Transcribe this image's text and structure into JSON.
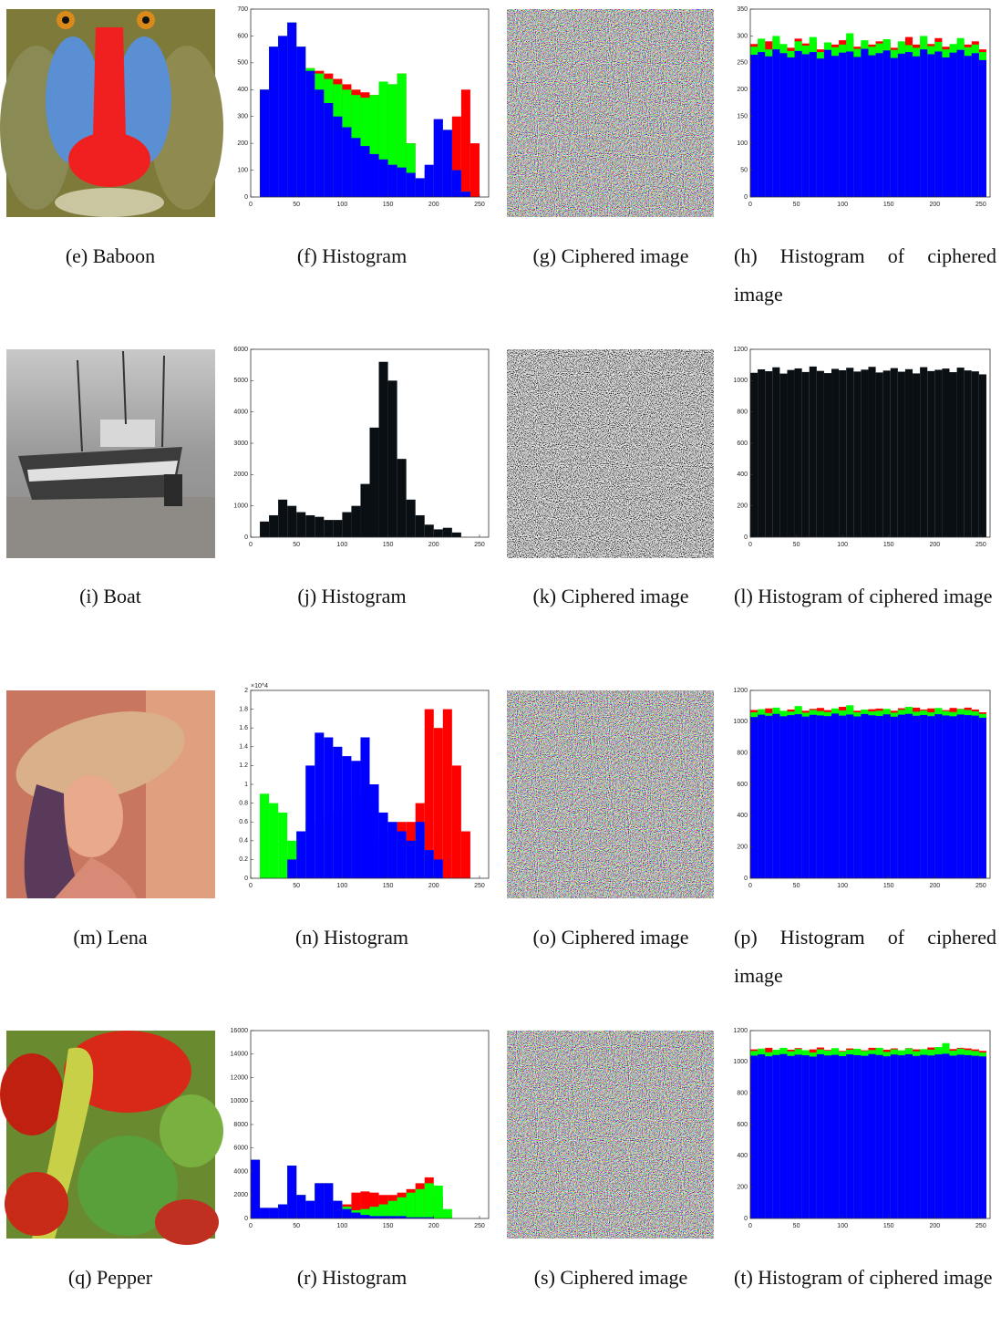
{
  "captions": [
    "(e) Baboon",
    "(f) Histogram",
    "(g) Ciphered image",
    "(h) Histogram of ciphered image",
    "(i) Boat",
    "(j) Histogram",
    "(k) Ciphered image",
    "(l) Histogram of ciphered image",
    "(m) Lena",
    "(n) Histogram",
    "(o) Ciphered image",
    "(p) Histogram of ciphered image",
    "(q) Pepper",
    "(r) Histogram",
    "(s) Ciphered image",
    "(t) Histogram of ciphered image"
  ],
  "chart_data": [
    {
      "type": "histogram",
      "xlim": [
        0,
        260
      ],
      "xticks": [
        0,
        50,
        100,
        150,
        200,
        250
      ],
      "ylim": [
        0,
        700
      ],
      "yticks": [
        0,
        100,
        200,
        300,
        400,
        500,
        600,
        700
      ],
      "bins": [
        0,
        10,
        20,
        30,
        40,
        50,
        60,
        70,
        80,
        90,
        100,
        110,
        120,
        130,
        140,
        150,
        160,
        170,
        180,
        190,
        200,
        210,
        220,
        230,
        240,
        250
      ],
      "series": [
        {
          "color": "#ff0000",
          "values": [
            0,
            400,
            560,
            600,
            650,
            560,
            480,
            470,
            460,
            440,
            420,
            400,
            390,
            380,
            420,
            420,
            460,
            200,
            60,
            100,
            290,
            250,
            300,
            400,
            200
          ]
        },
        {
          "color": "#00ff00",
          "values": [
            0,
            400,
            560,
            600,
            650,
            560,
            480,
            460,
            440,
            420,
            400,
            380,
            370,
            380,
            430,
            420,
            460,
            200,
            60,
            100,
            280,
            250,
            100,
            20,
            0
          ]
        },
        {
          "color": "#0000ff",
          "values": [
            0,
            400,
            560,
            600,
            650,
            560,
            470,
            400,
            350,
            300,
            260,
            220,
            190,
            160,
            140,
            120,
            110,
            90,
            70,
            120,
            290,
            250,
            100,
            20,
            0
          ]
        }
      ]
    },
    {
      "type": "histogram",
      "xlim": [
        0,
        260
      ],
      "xticks": [
        0,
        50,
        100,
        150,
        200,
        250
      ],
      "ylim": [
        0,
        350
      ],
      "yticks": [
        0,
        50,
        100,
        150,
        200,
        250,
        300,
        350
      ],
      "bins": [
        0,
        8,
        16,
        24,
        32,
        40,
        48,
        56,
        64,
        72,
        80,
        88,
        96,
        104,
        112,
        120,
        128,
        136,
        144,
        152,
        160,
        168,
        176,
        184,
        192,
        200,
        208,
        216,
        224,
        232,
        240,
        248,
        256
      ],
      "series": [
        {
          "color": "#ff0000",
          "values": [
            285,
            288,
            290,
            292,
            280,
            278,
            295,
            286,
            290,
            275,
            282,
            284,
            292,
            296,
            280,
            288,
            284,
            290,
            290,
            278,
            286,
            298,
            284,
            292,
            285,
            296,
            280,
            282,
            288,
            284,
            290,
            275
          ]
        },
        {
          "color": "#00ff00",
          "values": [
            280,
            295,
            275,
            300,
            285,
            272,
            290,
            282,
            298,
            270,
            288,
            279,
            284,
            305,
            276,
            292,
            280,
            286,
            294,
            274,
            290,
            283,
            278,
            300,
            281,
            289,
            275,
            285,
            296,
            279,
            284,
            270
          ]
        },
        {
          "color": "#0000ff",
          "values": [
            265,
            270,
            262,
            275,
            268,
            260,
            272,
            266,
            270,
            258,
            274,
            263,
            269,
            271,
            261,
            276,
            264,
            268,
            273,
            259,
            267,
            270,
            262,
            275,
            266,
            271,
            260,
            269,
            274,
            263,
            268,
            255
          ]
        }
      ]
    },
    {
      "type": "histogram",
      "xlim": [
        0,
        260
      ],
      "xticks": [
        0,
        50,
        100,
        150,
        200,
        250
      ],
      "ylim": [
        0,
        6000
      ],
      "yticks": [
        0,
        1000,
        2000,
        3000,
        4000,
        5000,
        6000
      ],
      "bins": [
        0,
        10,
        20,
        30,
        40,
        50,
        60,
        70,
        80,
        90,
        100,
        110,
        120,
        130,
        140,
        150,
        160,
        170,
        180,
        190,
        200,
        210,
        220,
        230,
        240,
        250
      ],
      "series": [
        {
          "color": "#0a0f14",
          "values": [
            0,
            500,
            700,
            1200,
            1000,
            800,
            700,
            650,
            550,
            550,
            800,
            1000,
            1700,
            3500,
            5600,
            5000,
            2500,
            1200,
            700,
            400,
            250,
            300,
            150,
            0,
            0
          ]
        }
      ]
    },
    {
      "type": "histogram",
      "xlim": [
        0,
        260
      ],
      "xticks": [
        0,
        50,
        100,
        150,
        200,
        250
      ],
      "ylim": [
        0,
        1200
      ],
      "yticks": [
        0,
        200,
        400,
        600,
        800,
        1000,
        1200
      ],
      "bins": [
        0,
        8,
        16,
        24,
        32,
        40,
        48,
        56,
        64,
        72,
        80,
        88,
        96,
        104,
        112,
        120,
        128,
        136,
        144,
        152,
        160,
        168,
        176,
        184,
        192,
        200,
        208,
        216,
        224,
        232,
        240,
        248,
        256
      ],
      "series": [
        {
          "color": "#0a0f14",
          "values": [
            1050,
            1072,
            1060,
            1085,
            1045,
            1068,
            1078,
            1055,
            1090,
            1062,
            1048,
            1075,
            1066,
            1082,
            1058,
            1070,
            1088,
            1052,
            1064,
            1080,
            1057,
            1073,
            1046,
            1086,
            1061,
            1069,
            1077,
            1054,
            1083,
            1065,
            1059,
            1040
          ]
        }
      ]
    },
    {
      "type": "histogram",
      "xlim": [
        0,
        260
      ],
      "xticks": [
        0,
        50,
        100,
        150,
        200,
        250
      ],
      "ylim": [
        0,
        2
      ],
      "yticks": [
        0,
        0.2,
        0.4,
        0.6,
        0.8,
        1,
        1.2,
        1.4,
        1.6,
        1.8,
        2
      ],
      "y_multiplier": "×10^4",
      "bins": [
        0,
        10,
        20,
        30,
        40,
        50,
        60,
        70,
        80,
        90,
        100,
        110,
        120,
        130,
        140,
        150,
        160,
        170,
        180,
        190,
        200,
        210,
        220,
        230,
        240,
        250
      ],
      "series": [
        {
          "color": "#ff0000",
          "values": [
            0,
            0,
            0,
            0,
            0,
            0,
            0,
            0,
            0,
            0,
            0,
            0,
            0,
            0,
            0.4,
            0.5,
            0.6,
            0.6,
            0.8,
            1.8,
            1.6,
            1.8,
            1.2,
            0.5,
            0
          ]
        },
        {
          "color": "#00ff00",
          "values": [
            0,
            0.9,
            0.8,
            0.7,
            0.4,
            0.5,
            0.6,
            0.6,
            0.7,
            0.7,
            0.8,
            0.9,
            1,
            0.8,
            0.4,
            0.5,
            0.4,
            0.3,
            0.5,
            0.3,
            0.1,
            0,
            0,
            0,
            0
          ]
        },
        {
          "color": "#0000ff",
          "values": [
            0,
            0,
            0,
            0,
            0.2,
            0.5,
            1.2,
            1.55,
            1.5,
            1.4,
            1.3,
            1.25,
            1.5,
            1,
            0.7,
            0.6,
            0.5,
            0.4,
            0.6,
            0.3,
            0.2,
            0,
            0,
            0,
            0
          ]
        }
      ]
    },
    {
      "type": "histogram",
      "xlim": [
        0,
        260
      ],
      "xticks": [
        0,
        50,
        100,
        150,
        200,
        250
      ],
      "ylim": [
        0,
        1200
      ],
      "yticks": [
        0,
        200,
        400,
        600,
        800,
        1000,
        1200
      ],
      "bins": [
        0,
        8,
        16,
        24,
        32,
        40,
        48,
        56,
        64,
        72,
        80,
        88,
        96,
        104,
        112,
        120,
        128,
        136,
        144,
        152,
        160,
        168,
        176,
        184,
        192,
        200,
        208,
        216,
        224,
        232,
        240,
        248,
        256
      ],
      "series": [
        {
          "color": "#ff0000",
          "values": [
            1075,
            1070,
            1085,
            1080,
            1060,
            1078,
            1090,
            1070,
            1082,
            1088,
            1074,
            1080,
            1095,
            1085,
            1070,
            1076,
            1080,
            1084,
            1078,
            1070,
            1086,
            1080,
            1090,
            1078,
            1085,
            1080,
            1074,
            1088,
            1082,
            1090,
            1078,
            1060
          ]
        },
        {
          "color": "#00ff00",
          "values": [
            1060,
            1080,
            1055,
            1090,
            1070,
            1065,
            1100,
            1058,
            1075,
            1068,
            1062,
            1085,
            1072,
            1105,
            1060,
            1078,
            1066,
            1070,
            1082,
            1058,
            1076,
            1095,
            1064,
            1072,
            1060,
            1088,
            1068,
            1062,
            1080,
            1075,
            1066,
            1050
          ]
        },
        {
          "color": "#0000ff",
          "values": [
            1030,
            1045,
            1038,
            1050,
            1035,
            1042,
            1048,
            1033,
            1044,
            1040,
            1036,
            1052,
            1039,
            1046,
            1034,
            1049,
            1041,
            1037,
            1047,
            1032,
            1045,
            1050,
            1038,
            1043,
            1036,
            1048,
            1040,
            1035,
            1046,
            1042,
            1039,
            1025
          ]
        }
      ]
    },
    {
      "type": "histogram",
      "xlim": [
        0,
        260
      ],
      "xticks": [
        0,
        50,
        100,
        150,
        200,
        250
      ],
      "ylim": [
        0,
        16000
      ],
      "yticks": [
        0,
        2000,
        4000,
        6000,
        8000,
        10000,
        12000,
        14000,
        16000
      ],
      "bins": [
        0,
        10,
        20,
        30,
        40,
        50,
        60,
        70,
        80,
        90,
        100,
        110,
        120,
        130,
        140,
        150,
        160,
        170,
        180,
        190,
        200,
        210,
        220,
        230,
        240,
        250
      ],
      "series": [
        {
          "color": "#ff0000",
          "values": [
            5000,
            900,
            900,
            1200,
            4500,
            2000,
            1500,
            3000,
            3000,
            1500,
            1200,
            2200,
            2300,
            2200,
            2000,
            2000,
            2200,
            2500,
            3000,
            3500,
            1800,
            300,
            0,
            0,
            0
          ]
        },
        {
          "color": "#00ff00",
          "values": [
            5000,
            900,
            900,
            1200,
            4500,
            2000,
            1500,
            3000,
            3000,
            1500,
            1000,
            700,
            800,
            1000,
            1200,
            1500,
            1800,
            2200,
            2500,
            3000,
            2800,
            800,
            0,
            0,
            0
          ]
        },
        {
          "color": "#0000ff",
          "values": [
            5000,
            900,
            900,
            1200,
            4500,
            2000,
            1500,
            3000,
            3000,
            1500,
            800,
            500,
            300,
            200,
            200,
            200,
            200,
            100,
            100,
            100,
            0,
            0,
            0,
            0,
            0
          ]
        }
      ]
    },
    {
      "type": "histogram",
      "xlim": [
        0,
        260
      ],
      "xticks": [
        0,
        50,
        100,
        150,
        200,
        250
      ],
      "ylim": [
        0,
        1200
      ],
      "yticks": [
        0,
        200,
        400,
        600,
        800,
        1000,
        1200
      ],
      "bins": [
        0,
        8,
        16,
        24,
        32,
        40,
        48,
        56,
        64,
        72,
        80,
        88,
        96,
        104,
        112,
        120,
        128,
        136,
        144,
        152,
        160,
        168,
        176,
        184,
        192,
        200,
        208,
        216,
        224,
        232,
        240,
        248,
        256
      ],
      "series": [
        {
          "color": "#ff0000",
          "values": [
            1080,
            1075,
            1090,
            1070,
            1085,
            1078,
            1088,
            1072,
            1080,
            1092,
            1076,
            1084,
            1070,
            1086,
            1080,
            1074,
            1090,
            1082,
            1078,
            1086,
            1072,
            1088,
            1080,
            1076,
            1092,
            1084,
            1078,
            1082,
            1090,
            1086,
            1080,
            1070
          ]
        },
        {
          "color": "#00ff00",
          "values": [
            1070,
            1085,
            1062,
            1078,
            1090,
            1068,
            1082,
            1075,
            1060,
            1080,
            1072,
            1088,
            1066,
            1078,
            1084,
            1070,
            1076,
            1090,
            1064,
            1080,
            1074,
            1086,
            1068,
            1082,
            1078,
            1095,
            1120,
            1072,
            1085,
            1076,
            1070,
            1060
          ]
        },
        {
          "color": "#0000ff",
          "values": [
            1040,
            1048,
            1036,
            1044,
            1050,
            1038,
            1046,
            1042,
            1034,
            1049,
            1041,
            1045,
            1037,
            1048,
            1043,
            1039,
            1050,
            1044,
            1036,
            1047,
            1042,
            1049,
            1038,
            1045,
            1041,
            1048,
            1052,
            1040,
            1046,
            1043,
            1039,
            1035
          ]
        }
      ]
    }
  ]
}
